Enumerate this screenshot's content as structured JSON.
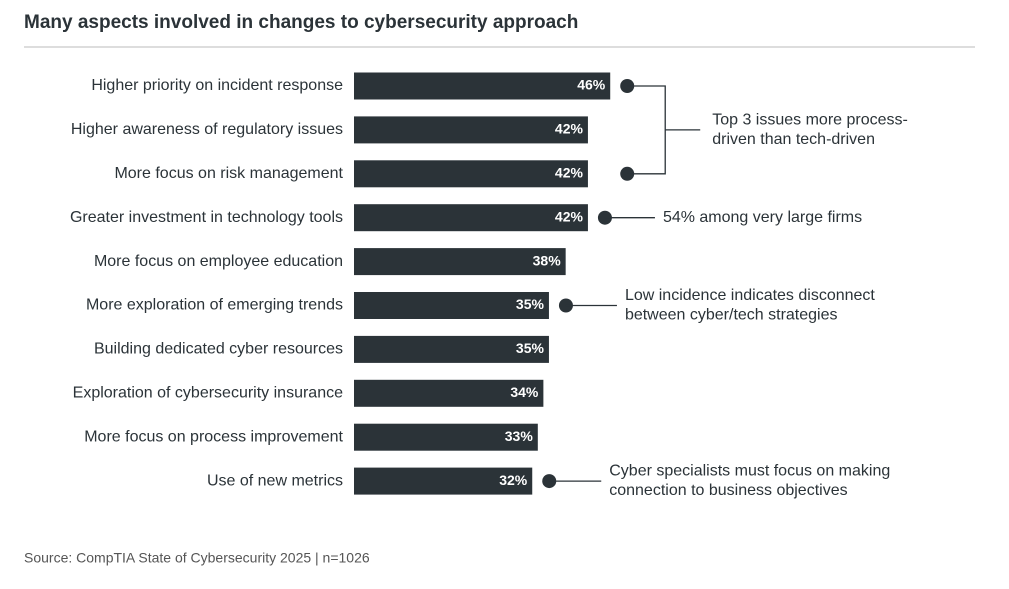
{
  "chart_data": {
    "type": "bar",
    "orientation": "horizontal",
    "title": "Many aspects involved in changes to cybersecurity approach",
    "categories": [
      "Higher priority on incident response",
      "Higher awareness of regulatory issues",
      "More focus on risk management",
      "Greater investment in technology tools",
      "More focus on employee education",
      "More exploration of emerging trends",
      "Building dedicated cyber resources",
      "Exploration of cybersecurity insurance",
      "More focus on process improvement",
      "Use of new metrics"
    ],
    "values": [
      46,
      42,
      42,
      42,
      38,
      35,
      35,
      34,
      33,
      32
    ],
    "value_labels": [
      "46%",
      "42%",
      "42%",
      "42%",
      "38%",
      "35%",
      "35%",
      "34%",
      "33%",
      "32%"
    ],
    "color": "#2b3338",
    "annotations": [
      {
        "text": [
          "Top 3 issues more process-",
          "driven than tech-driven"
        ]
      },
      {
        "text": [
          "54% among very large firms"
        ]
      },
      {
        "text": [
          "Low incidence indicates disconnect",
          "between cyber/tech strategies"
        ]
      },
      {
        "text": [
          "Cyber specialists must focus on making",
          "connection to business objectives"
        ]
      }
    ],
    "source": "Source: CompTIA State of Cybersecurity 2025 | n=1026"
  }
}
